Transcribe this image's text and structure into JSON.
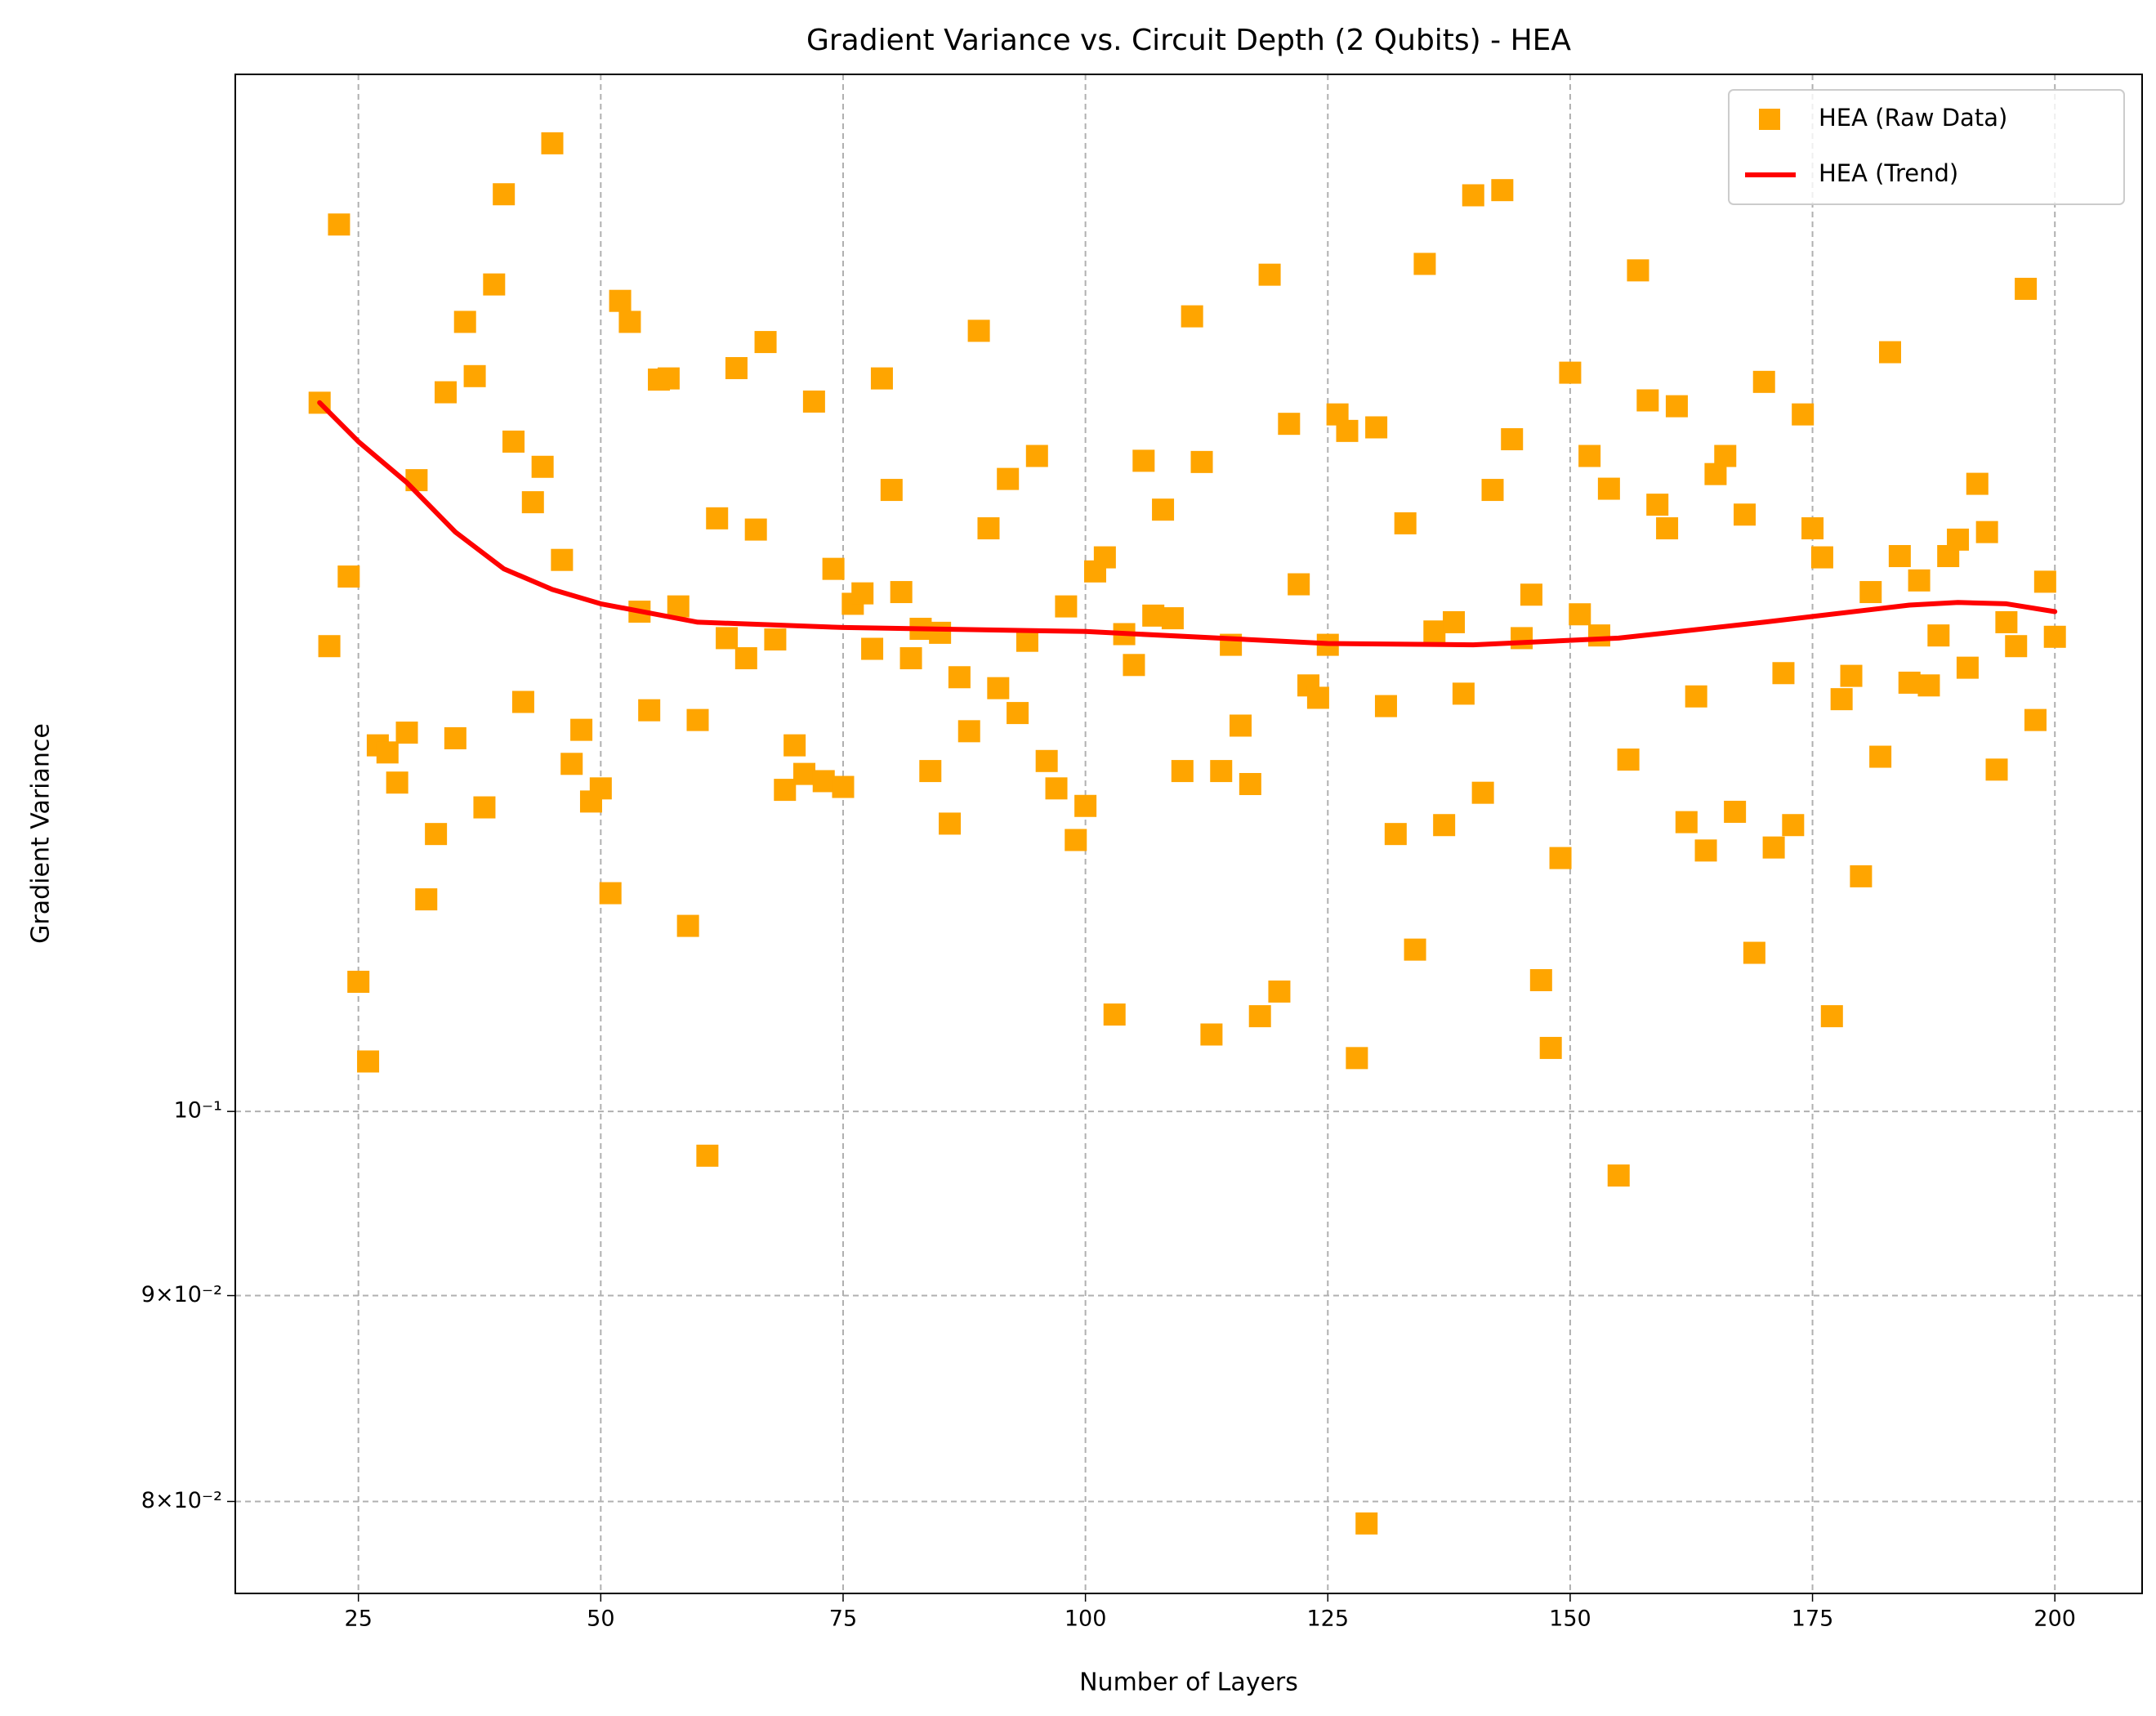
{
  "chart_data": {
    "type": "scatter",
    "title": "Gradient Variance vs. Circuit Depth (2 Qubits) - HEA",
    "x_label": "Number of Layers",
    "y_label": "Gradient Variance",
    "xlim": [
      12.3,
      209
    ],
    "ylim": [
      0.0759,
      0.181
    ],
    "yscale": "log",
    "xticks": [
      25,
      50,
      75,
      100,
      125,
      150,
      175,
      200
    ],
    "yticks": [
      {
        "value": 0.08,
        "label": "8×10⁻²"
      },
      {
        "value": 0.09,
        "label": "9×10⁻²"
      },
      {
        "value": 0.1,
        "label": "10⁻¹"
      }
    ],
    "grid": true,
    "legend": "upper right",
    "series": [
      {
        "name": "HEA (Raw Data)",
        "type": "scatter",
        "color": "#ffa500",
        "x": [
          21,
          22,
          23,
          24,
          25,
          26,
          27,
          28,
          29,
          30,
          31,
          32,
          33,
          34,
          35,
          36,
          37,
          38,
          39,
          40,
          41,
          42,
          43,
          44,
          45,
          46,
          47,
          48,
          49,
          50,
          51,
          52,
          53,
          54,
          55,
          56,
          57,
          58,
          59,
          60,
          61,
          62,
          63,
          64,
          65,
          66,
          67,
          68,
          69,
          70,
          71,
          72,
          73,
          74,
          75,
          76,
          77,
          78,
          79,
          80,
          81,
          82,
          83,
          84,
          85,
          86,
          87,
          88,
          89,
          90,
          91,
          92,
          93,
          94,
          95,
          96,
          97,
          98,
          99,
          100,
          101,
          102,
          103,
          104,
          105,
          106,
          107,
          108,
          109,
          110,
          111,
          112,
          113,
          114,
          115,
          116,
          117,
          118,
          119,
          120,
          121,
          122,
          123,
          124,
          125,
          126,
          127,
          128,
          129,
          130,
          131,
          132,
          133,
          134,
          135,
          136,
          137,
          138,
          139,
          140,
          141,
          142,
          143,
          144,
          145,
          146,
          147,
          148,
          149,
          150,
          151,
          152,
          153,
          154,
          155,
          156,
          157,
          158,
          159,
          160,
          161,
          162,
          163,
          164,
          165,
          166,
          167,
          168,
          169,
          170,
          171,
          172,
          173,
          174,
          175,
          176,
          177,
          178,
          179,
          180,
          181,
          182,
          183,
          184,
          185,
          186,
          187,
          188,
          189,
          190,
          191,
          192,
          193,
          194,
          195,
          196,
          197,
          198,
          199,
          200
        ],
        "values": [
          0.15,
          0.1305,
          0.1661,
          0.1358,
          0.1077,
          0.1029,
          0.1233,
          0.1228,
          0.1207,
          0.1242,
          0.1435,
          0.1129,
          0.1172,
          0.1509,
          0.1238,
          0.1571,
          0.1523,
          0.119,
          0.1605,
          0.169,
          0.1467,
          0.1264,
          0.1417,
          0.1446,
          0.174,
          0.1371,
          0.122,
          0.1244,
          0.1194,
          0.1203,
          0.1133,
          0.159,
          0.1571,
          0.1331,
          0.1258,
          0.152,
          0.1521,
          0.1335,
          0.1112,
          0.1251,
          0.0975,
          0.1404,
          0.1311,
          0.153,
          0.1296,
          0.1395,
          0.1553,
          0.131,
          0.1202,
          0.1233,
          0.1213,
          0.1501,
          0.1208,
          0.1364,
          0.1204,
          0.1337,
          0.1345,
          0.1303,
          0.1521,
          0.1427,
          0.1346,
          0.1296,
          0.1318,
          0.1215,
          0.1315,
          0.1179,
          0.1282,
          0.1243,
          0.1563,
          0.1396,
          0.1274,
          0.1436,
          0.1256,
          0.1309,
          0.1455,
          0.1222,
          0.1203,
          0.1335,
          0.1168,
          0.1191,
          0.1362,
          0.1373,
          0.1057,
          0.1314,
          0.1291,
          0.1451,
          0.1328,
          0.1411,
          0.1326,
          0.1215,
          0.1576,
          0.145,
          0.1045,
          0.1215,
          0.1306,
          0.1247,
          0.1206,
          0.1056,
          0.1614,
          0.1071,
          0.1482,
          0.1352,
          0.1276,
          0.1267,
          0.1306,
          0.149,
          0.1476,
          0.1031,
          0.079,
          0.1479,
          0.1261,
          0.1172,
          0.14,
          0.1097,
          0.1624,
          0.1316,
          0.1178,
          0.1323,
          0.127,
          0.1689,
          0.12,
          0.1427,
          0.1694,
          0.1469,
          0.1311,
          0.1344,
          0.1078,
          0.1037,
          0.1156,
          0.1526,
          0.1329,
          0.1455,
          0.1313,
          0.1428,
          0.0964,
          0.1223,
          0.1618,
          0.1502,
          0.1415,
          0.1396,
          0.1497,
          0.118,
          0.1268,
          0.1161,
          0.144,
          0.1455,
          0.1187,
          0.1407,
          0.1095,
          0.1518,
          0.1163,
          0.1285,
          0.1178,
          0.149,
          0.1396,
          0.1373,
          0.1056,
          0.1266,
          0.1283,
          0.1144,
          0.1346,
          0.1225,
          0.1544,
          0.1374,
          0.1278,
          0.1355,
          0.1276,
          0.1313,
          0.1374,
          0.1387,
          0.1289,
          0.1432,
          0.1393,
          0.1216,
          0.1323,
          0.1305,
          0.1601,
          0.1251,
          0.1354,
          0.1312
        ]
      },
      {
        "name": "HEA (Trend)",
        "type": "line",
        "color": "#ff0000",
        "x": [
          21,
          25,
          30,
          35,
          40,
          45,
          50,
          60,
          75,
          100,
          125,
          140,
          155,
          170,
          185,
          190,
          195,
          200
        ],
        "values": [
          0.15,
          0.1467,
          0.1433,
          0.1393,
          0.1364,
          0.1348,
          0.1337,
          0.1323,
          0.1319,
          0.1316,
          0.1307,
          0.1306,
          0.1311,
          0.1323,
          0.1336,
          0.1338,
          0.1337,
          0.1331
        ]
      }
    ]
  }
}
